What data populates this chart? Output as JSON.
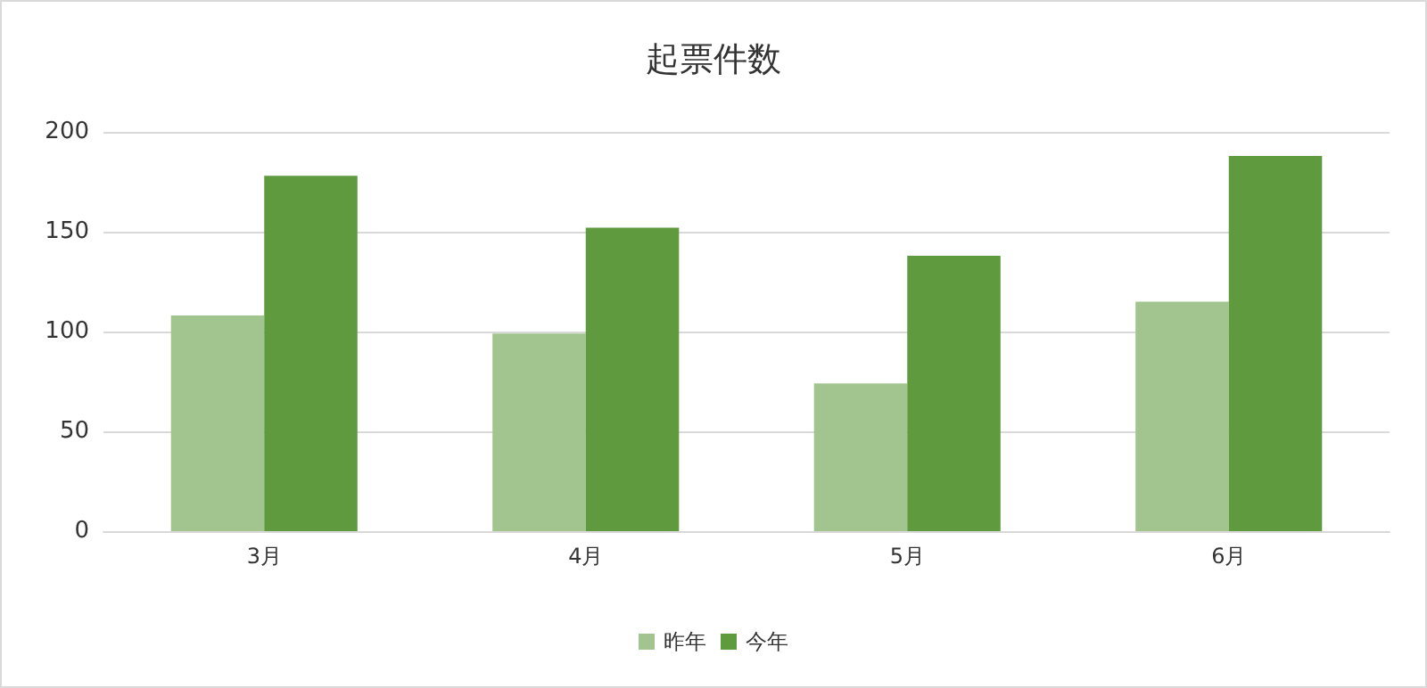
{
  "chart_data": {
    "type": "bar",
    "title": "起票件数",
    "categories": [
      "3月",
      "4月",
      "5月",
      "6月"
    ],
    "series": [
      {
        "name": "昨年",
        "color": "#a2c58f",
        "values": [
          108,
          99,
          74,
          115
        ]
      },
      {
        "name": "今年",
        "color": "#5f9a3f",
        "values": [
          178,
          152,
          138,
          188
        ]
      }
    ],
    "ylim": [
      0,
      200
    ],
    "yticks": [
      0,
      50,
      100,
      150,
      200
    ],
    "grid": "y",
    "legend": "bottom"
  }
}
